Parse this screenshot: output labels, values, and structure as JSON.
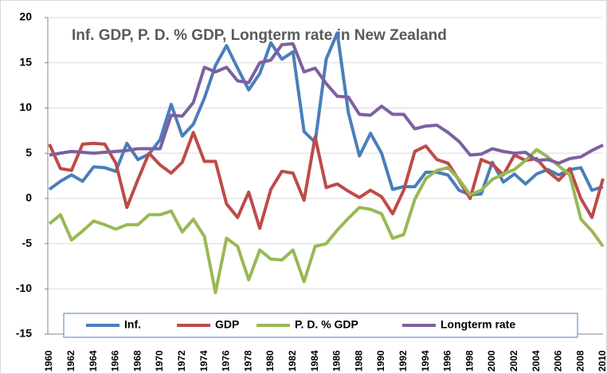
{
  "chart_data": {
    "type": "line",
    "title": "Inf. GDP, P. D. % GDP, Longterm rate in New Zealand",
    "categories": [
      "1960",
      null,
      "1962",
      null,
      "1964",
      null,
      "1966",
      null,
      "1968",
      null,
      "1970",
      null,
      "1972",
      null,
      "1974",
      null,
      "1976",
      null,
      "1978",
      null,
      "1980",
      null,
      "1982",
      null,
      "1984",
      null,
      "1986",
      null,
      "1988",
      null,
      "1990",
      null,
      "1992",
      null,
      "1994",
      null,
      "1996",
      null,
      "1998",
      null,
      "2000",
      null,
      "2002",
      null,
      "2004",
      null,
      "2006",
      null,
      "2008",
      null,
      "2010"
    ],
    "series": [
      {
        "name": "Inf.",
        "color": "#4a7ebb",
        "values": [
          1.0,
          1.9,
          2.6,
          1.9,
          3.5,
          3.4,
          3.0,
          6.1,
          4.3,
          4.9,
          6.5,
          10.4,
          6.9,
          8.2,
          11.1,
          14.7,
          16.9,
          14.4,
          12.0,
          13.8,
          17.2,
          15.4,
          16.2,
          7.4,
          6.2,
          15.4,
          18.3,
          9.5,
          4.7,
          7.2,
          5.0,
          1.0,
          1.3,
          1.3,
          2.9,
          2.9,
          2.6,
          0.9,
          0.4,
          0.5,
          4.0,
          1.8,
          2.7,
          1.6,
          2.7,
          3.2,
          2.6,
          3.2,
          3.4,
          0.9,
          1.3
        ]
      },
      {
        "name": "GDP",
        "color": "#be4b48",
        "values": [
          6.0,
          3.3,
          3.1,
          6.0,
          6.1,
          6.0,
          3.9,
          -1.0,
          2.1,
          5.0,
          3.7,
          2.8,
          4.0,
          7.3,
          4.1,
          4.1,
          -0.6,
          -2.1,
          0.7,
          -3.3,
          1.0,
          3.0,
          2.8,
          -0.2,
          6.8,
          1.2,
          1.6,
          0.8,
          0.1,
          0.9,
          0.2,
          -1.7,
          0.9,
          5.2,
          5.8,
          4.3,
          3.9,
          2.0,
          0.0,
          4.3,
          3.8,
          2.6,
          4.8,
          4.2,
          4.4,
          3.0,
          2.0,
          3.3,
          0.0,
          -2.1,
          2.2
        ]
      },
      {
        "name": "P. D. % GDP",
        "color": "#98b954",
        "values": [
          -2.8,
          -1.8,
          -4.6,
          -3.6,
          -2.5,
          -2.9,
          -3.4,
          -2.9,
          -2.9,
          -1.8,
          -1.8,
          -1.4,
          -3.7,
          -2.3,
          -4.2,
          -10.4,
          -4.4,
          -5.3,
          -9.0,
          -5.7,
          -6.7,
          -6.8,
          -5.7,
          -9.2,
          -5.3,
          -5.0,
          -3.5,
          -2.2,
          -1.0,
          -1.2,
          -1.7,
          -4.4,
          -4.0,
          -0.1,
          2.2,
          3.1,
          3.4,
          2.1,
          0.4,
          0.9,
          2.1,
          2.7,
          3.2,
          4.2,
          5.4,
          4.6,
          3.6,
          2.6,
          -2.3,
          -3.6,
          -5.3
        ]
      },
      {
        "name": "Longterm rate",
        "color": "#7d60a0",
        "values": [
          4.8,
          5.0,
          5.2,
          5.1,
          5.0,
          5.1,
          5.2,
          5.3,
          5.5,
          5.5,
          5.5,
          9.2,
          9.1,
          10.6,
          14.5,
          14.0,
          14.5,
          13.0,
          12.8,
          15.0,
          15.3,
          17.0,
          17.1,
          14.0,
          14.4,
          12.7,
          11.3,
          11.2,
          9.3,
          9.2,
          10.2,
          9.3,
          9.3,
          7.7,
          8.0,
          8.1,
          7.3,
          6.3,
          4.8,
          4.9,
          5.5,
          5.2,
          5.0,
          5.1,
          4.2,
          4.3,
          3.9,
          4.4,
          4.6,
          5.3,
          5.9
        ]
      }
    ],
    "ylim": [
      -15,
      20
    ],
    "yticks": [
      -15,
      -10,
      -5,
      0,
      5,
      10,
      15,
      20
    ],
    "grid": true,
    "legend": "bottom"
  }
}
